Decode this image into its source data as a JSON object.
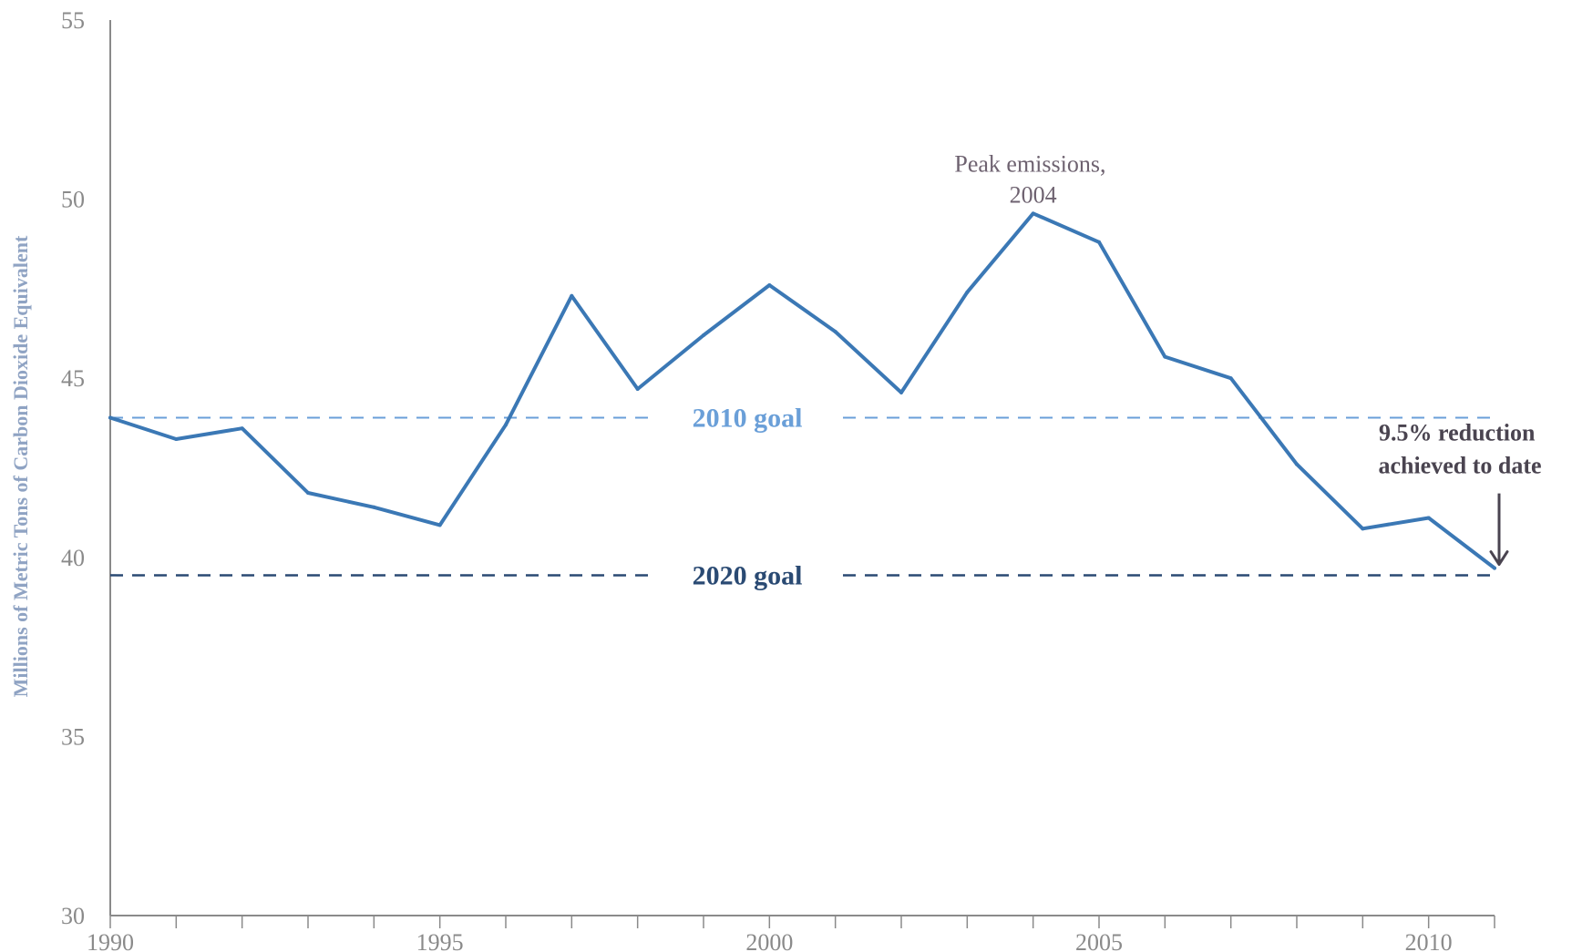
{
  "chart_data": {
    "type": "line",
    "title": "",
    "xlabel": "",
    "ylabel": "Millions of Metric Tons of Carbon Dioxide Equivalent",
    "xlim": [
      1990,
      2011
    ],
    "ylim": [
      30,
      55
    ],
    "x_ticks": [
      1990,
      1995,
      2000,
      2005,
      2010
    ],
    "y_ticks": [
      30,
      35,
      40,
      45,
      50,
      55
    ],
    "grid": false,
    "x": [
      1990,
      1991,
      1992,
      1993,
      1994,
      1995,
      1996,
      1997,
      1998,
      1999,
      2000,
      2001,
      2002,
      2003,
      2004,
      2005,
      2006,
      2007,
      2008,
      2009,
      2010,
      2011
    ],
    "series": [
      {
        "values": [
          43.9,
          43.3,
          43.6,
          41.8,
          41.4,
          40.9,
          43.7,
          47.3,
          44.7,
          46.2,
          47.6,
          46.3,
          44.6,
          47.4,
          49.6,
          48.8,
          45.6,
          45.0,
          42.6,
          40.8,
          41.1,
          39.7
        ],
        "color": "#3b78b5"
      }
    ],
    "reference_lines": [
      {
        "label": "2010 goal",
        "value": 43.9,
        "color": "#6a9fd8",
        "style": "dashed"
      },
      {
        "label": "2020 goal",
        "value": 39.5,
        "color": "#2a4a73",
        "style": "dashed"
      }
    ],
    "annotations": [
      {
        "id": "peak",
        "lines": [
          "Peak emissions,",
          "2004"
        ],
        "x": 2004,
        "y": 49.6
      },
      {
        "id": "reduction",
        "lines": [
          "9.5% reduction",
          "achieved to date"
        ],
        "x": 2011,
        "y": 39.7
      }
    ]
  }
}
